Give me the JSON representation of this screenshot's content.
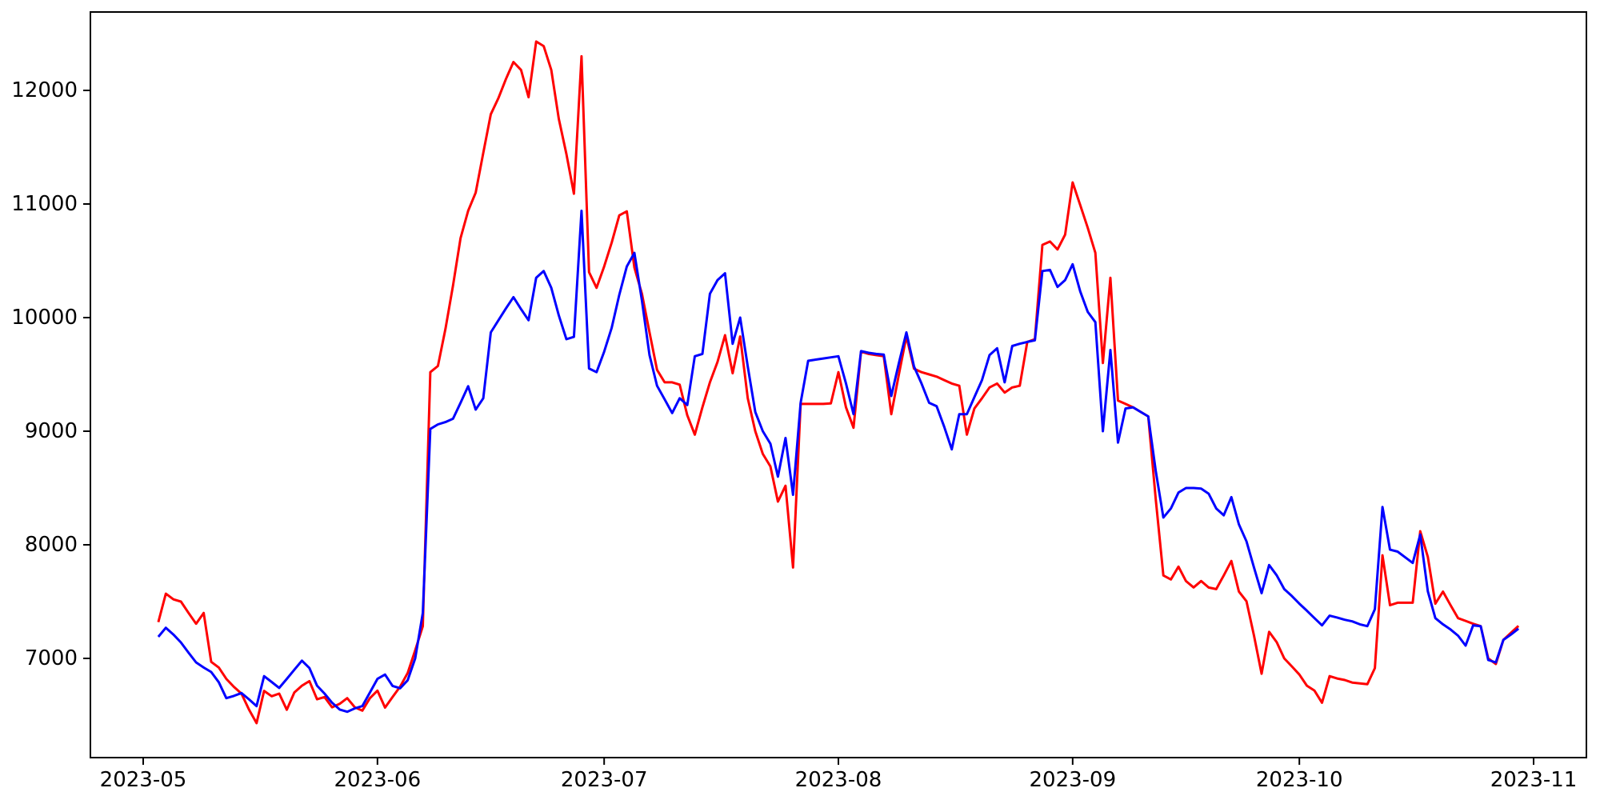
{
  "figure": {
    "background": "#ffffff",
    "border_color": "#000000"
  },
  "chart_data": {
    "type": "line",
    "title": "",
    "xlabel": "",
    "ylabel": "",
    "grid": false,
    "legend_visible": false,
    "x_tick_labels": [
      "2023-05",
      "2023-06",
      "2023-07",
      "2023-08",
      "2023-09",
      "2023-10",
      "2023-11"
    ],
    "y_ticks": [
      7000,
      8000,
      9000,
      10000,
      11000,
      12000
    ],
    "ylim": [
      6130,
      12690
    ],
    "xlim": [
      "2023-04-24",
      "2023-11-08"
    ],
    "dates": [
      "2023-05-03",
      "2023-05-04",
      "2023-05-05",
      "2023-05-06",
      "2023-05-07",
      "2023-05-08",
      "2023-05-09",
      "2023-05-10",
      "2023-05-11",
      "2023-05-12",
      "2023-05-13",
      "2023-05-14",
      "2023-05-15",
      "2023-05-16",
      "2023-05-17",
      "2023-05-18",
      "2023-05-19",
      "2023-05-20",
      "2023-05-21",
      "2023-05-22",
      "2023-05-23",
      "2023-05-24",
      "2023-05-25",
      "2023-05-26",
      "2023-05-27",
      "2023-05-28",
      "2023-05-29",
      "2023-05-30",
      "2023-05-31",
      "2023-06-01",
      "2023-06-02",
      "2023-06-03",
      "2023-06-04",
      "2023-06-05",
      "2023-06-06",
      "2023-06-07",
      "2023-06-08",
      "2023-06-09",
      "2023-06-10",
      "2023-06-11",
      "2023-06-12",
      "2023-06-13",
      "2023-06-14",
      "2023-06-15",
      "2023-06-16",
      "2023-06-17",
      "2023-06-18",
      "2023-06-19",
      "2023-06-20",
      "2023-06-21",
      "2023-06-22",
      "2023-06-23",
      "2023-06-24",
      "2023-06-25",
      "2023-06-26",
      "2023-06-27",
      "2023-06-28",
      "2023-06-29",
      "2023-06-30",
      "2023-07-01",
      "2023-07-02",
      "2023-07-03",
      "2023-07-04",
      "2023-07-05",
      "2023-07-06",
      "2023-07-07",
      "2023-07-08",
      "2023-07-09",
      "2023-07-10",
      "2023-07-11",
      "2023-07-12",
      "2023-07-13",
      "2023-07-14",
      "2023-07-15",
      "2023-07-16",
      "2023-07-17",
      "2023-07-18",
      "2023-07-19",
      "2023-07-20",
      "2023-07-21",
      "2023-07-22",
      "2023-07-23",
      "2023-07-24",
      "2023-07-25",
      "2023-07-26",
      "2023-07-27",
      "2023-07-28",
      "2023-07-29",
      "2023-07-30",
      "2023-07-31",
      "2023-08-01",
      "2023-08-02",
      "2023-08-03",
      "2023-08-04",
      "2023-08-05",
      "2023-08-06",
      "2023-08-07",
      "2023-08-08",
      "2023-08-09",
      "2023-08-10",
      "2023-08-11",
      "2023-08-12",
      "2023-08-13",
      "2023-08-14",
      "2023-08-15",
      "2023-08-16",
      "2023-08-17",
      "2023-08-18",
      "2023-08-19",
      "2023-08-20",
      "2023-08-21",
      "2023-08-22",
      "2023-08-23",
      "2023-08-24",
      "2023-08-25",
      "2023-08-26",
      "2023-08-27",
      "2023-08-28",
      "2023-08-29",
      "2023-08-30",
      "2023-08-31",
      "2023-09-01",
      "2023-09-02",
      "2023-09-03",
      "2023-09-04",
      "2023-09-05",
      "2023-09-06",
      "2023-09-07",
      "2023-09-08",
      "2023-09-09",
      "2023-09-10",
      "2023-09-11",
      "2023-09-12",
      "2023-09-13",
      "2023-09-14",
      "2023-09-15",
      "2023-09-16",
      "2023-09-17",
      "2023-09-18",
      "2023-09-19",
      "2023-09-20",
      "2023-09-21",
      "2023-09-22",
      "2023-09-23",
      "2023-09-24",
      "2023-09-25",
      "2023-09-26",
      "2023-09-27",
      "2023-09-28",
      "2023-09-29",
      "2023-09-30",
      "2023-10-01",
      "2023-10-02",
      "2023-10-03",
      "2023-10-04",
      "2023-10-05",
      "2023-10-06",
      "2023-10-07",
      "2023-10-08",
      "2023-10-09",
      "2023-10-10",
      "2023-10-11",
      "2023-10-12",
      "2023-10-13",
      "2023-10-14",
      "2023-10-15",
      "2023-10-16",
      "2023-10-17",
      "2023-10-18",
      "2023-10-19",
      "2023-10-20",
      "2023-10-21",
      "2023-10-22",
      "2023-10-23",
      "2023-10-24",
      "2023-10-25",
      "2023-10-26",
      "2023-10-27",
      "2023-10-28",
      "2023-10-29",
      "2023-10-30"
    ],
    "series": [
      {
        "name": "red-series",
        "color": "#ff0000",
        "values": [
          7320,
          7570,
          7520,
          7500,
          7400,
          7305,
          7400,
          6970,
          6920,
          6820,
          6750,
          6690,
          6550,
          6430,
          6714,
          6667,
          6690,
          6548,
          6700,
          6760,
          6800,
          6640,
          6660,
          6570,
          6600,
          6650,
          6570,
          6540,
          6650,
          6716,
          6567,
          6660,
          6752,
          6872,
          7071,
          7283,
          9520,
          9574,
          9900,
          10283,
          10700,
          10940,
          11100,
          11450,
          11790,
          11930,
          12100,
          12250,
          12180,
          11940,
          12430,
          12390,
          12180,
          11750,
          11440,
          11090,
          12300,
          10400,
          10262,
          10450,
          10660,
          10900,
          10935,
          10440,
          10210,
          9870,
          9540,
          9430,
          9430,
          9410,
          9140,
          8970,
          9210,
          9430,
          9610,
          9845,
          9510,
          9834,
          9290,
          9000,
          8800,
          8690,
          8380,
          8520,
          7800,
          9240,
          9240,
          9240,
          9240,
          9245,
          9520,
          9210,
          9030,
          9700,
          9680,
          9670,
          9660,
          9150,
          9500,
          9835,
          9550,
          9520,
          9500,
          9480,
          9450,
          9420,
          9400,
          8970,
          9200,
          9290,
          9385,
          9420,
          9340,
          9385,
          9400,
          9786,
          9810,
          10640,
          10670,
          10600,
          10730,
          11190,
          10990,
          10790,
          10570,
          9600,
          10350,
          9270,
          9240,
          9210,
          9170,
          9130,
          8400,
          7730,
          7695,
          7808,
          7680,
          7625,
          7681,
          7624,
          7610,
          7730,
          7858,
          7589,
          7503,
          7200,
          6865,
          7234,
          7142,
          7000,
          6930,
          6858,
          6760,
          6716,
          6610,
          6844,
          6823,
          6810,
          6787,
          6780,
          6773,
          6915,
          7908,
          7468,
          7490,
          7490,
          7490,
          8120,
          7893,
          7482,
          7588,
          7470,
          7354,
          7330,
          7305,
          7284,
          7000,
          6951,
          7163,
          7225,
          7286
        ]
      },
      {
        "name": "blue-series",
        "color": "#0000ff",
        "values": [
          7190,
          7270,
          7210,
          7140,
          7050,
          6965,
          6920,
          6880,
          6790,
          6650,
          6670,
          6695,
          6640,
          6580,
          6844,
          6792,
          6740,
          6820,
          6900,
          6980,
          6915,
          6760,
          6690,
          6610,
          6550,
          6530,
          6560,
          6580,
          6700,
          6820,
          6858,
          6758,
          6737,
          6808,
          7000,
          7400,
          9020,
          9060,
          9080,
          9110,
          9250,
          9396,
          9190,
          9290,
          9870,
          9975,
          10080,
          10180,
          10075,
          9977,
          10350,
          10410,
          10262,
          10020,
          9810,
          9830,
          10940,
          9552,
          9520,
          9700,
          9910,
          10200,
          10450,
          10570,
          10150,
          9670,
          9400,
          9280,
          9160,
          9290,
          9230,
          9660,
          9680,
          10210,
          10330,
          10390,
          9770,
          10000,
          9570,
          9170,
          9000,
          8890,
          8600,
          8940,
          8440,
          9250,
          9620,
          9630,
          9640,
          9650,
          9660,
          9420,
          9150,
          9705,
          9690,
          9680,
          9675,
          9310,
          9600,
          9870,
          9570,
          9420,
          9250,
          9220,
          9040,
          8840,
          9150,
          9150,
          9300,
          9450,
          9670,
          9730,
          9430,
          9750,
          9770,
          9786,
          9800,
          10410,
          10420,
          10270,
          10330,
          10470,
          10230,
          10050,
          9960,
          9000,
          9715,
          8900,
          9200,
          9210,
          9170,
          9130,
          8650,
          8240,
          8320,
          8460,
          8500,
          8500,
          8495,
          8450,
          8320,
          8260,
          8420,
          8180,
          8030,
          7800,
          7574,
          7822,
          7731,
          7610,
          7550,
          7482,
          7420,
          7354,
          7291,
          7376,
          7360,
          7340,
          7326,
          7300,
          7284,
          7433,
          8333,
          7957,
          7940,
          7890,
          7840,
          8090,
          7590,
          7354,
          7300,
          7255,
          7200,
          7113,
          7291,
          7284,
          6986,
          6965,
          7163,
          7210,
          7262
        ]
      }
    ]
  }
}
